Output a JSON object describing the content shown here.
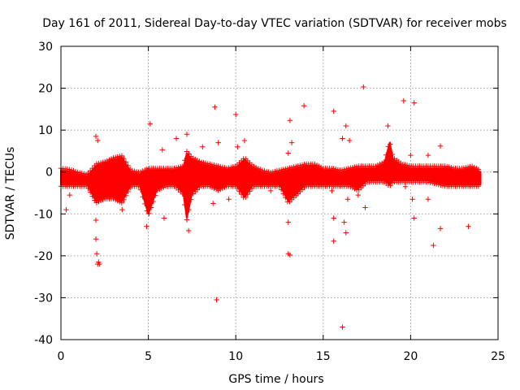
{
  "chart_data": {
    "type": "scatter",
    "title": "Day 161 of 2011, Sidereal Day-to-day VTEC variation (SDTVAR) for receiver mobs",
    "xlabel": "GPS time / hours",
    "ylabel": "SDTVAR / TECUs",
    "xlim": [
      0,
      25
    ],
    "ylim": [
      -40,
      30
    ],
    "xticks": [
      0,
      5,
      10,
      15,
      20,
      25
    ],
    "yticks": [
      -40,
      -30,
      -20,
      -10,
      0,
      10,
      20,
      30
    ],
    "xtick_labels": [
      "0",
      "5",
      "10",
      "15",
      "20",
      "25"
    ],
    "ytick_labels": [
      "-40",
      "-30",
      "-20",
      "-10",
      "0",
      "10",
      "20",
      "30"
    ],
    "grid": true,
    "marker": "+",
    "color": "#ff0000",
    "band": {
      "x_range": [
        0,
        24
      ],
      "upper_envelope": [
        [
          0,
          0.5
        ],
        [
          0.5,
          0.2
        ],
        [
          1,
          -0.5
        ],
        [
          1.5,
          -1
        ],
        [
          2,
          1.5
        ],
        [
          2.5,
          2
        ],
        [
          3,
          3
        ],
        [
          3.5,
          3.5
        ],
        [
          4,
          0
        ],
        [
          4.5,
          -0.5
        ],
        [
          5,
          0.5
        ],
        [
          5.5,
          0.5
        ],
        [
          6,
          0.5
        ],
        [
          6.5,
          0.5
        ],
        [
          7,
          1
        ],
        [
          7.2,
          4.5
        ],
        [
          7.5,
          3
        ],
        [
          8,
          2
        ],
        [
          8.5,
          1.5
        ],
        [
          9,
          1
        ],
        [
          9.5,
          0.5
        ],
        [
          10,
          1
        ],
        [
          10.5,
          3
        ],
        [
          11,
          1
        ],
        [
          11.5,
          0
        ],
        [
          12,
          -0.5
        ],
        [
          12.5,
          0
        ],
        [
          13,
          0.5
        ],
        [
          13.5,
          1
        ],
        [
          14,
          1.5
        ],
        [
          14.5,
          1.5
        ],
        [
          15,
          0.5
        ],
        [
          15.5,
          0.5
        ],
        [
          16,
          0
        ],
        [
          16.5,
          0.5
        ],
        [
          17,
          1
        ],
        [
          17.5,
          1
        ],
        [
          18,
          1
        ],
        [
          18.5,
          2
        ],
        [
          18.8,
          7
        ],
        [
          19,
          3
        ],
        [
          19.5,
          1.5
        ],
        [
          20,
          1
        ],
        [
          21,
          1
        ],
        [
          22,
          1
        ],
        [
          22.5,
          0.5
        ],
        [
          23,
          0.5
        ],
        [
          23.5,
          1
        ],
        [
          24,
          0
        ]
      ],
      "lower_envelope": [
        [
          0,
          -3
        ],
        [
          0.5,
          -3
        ],
        [
          1,
          -3
        ],
        [
          1.5,
          -3
        ],
        [
          2,
          -7
        ],
        [
          2.5,
          -6
        ],
        [
          3,
          -6
        ],
        [
          3.5,
          -7
        ],
        [
          4,
          -3
        ],
        [
          4.5,
          -3
        ],
        [
          5,
          -10
        ],
        [
          5.5,
          -4
        ],
        [
          6,
          -3
        ],
        [
          6.5,
          -3
        ],
        [
          7,
          -5
        ],
        [
          7.2,
          -11
        ],
        [
          7.5,
          -5
        ],
        [
          8,
          -3
        ],
        [
          8.5,
          -3
        ],
        [
          9,
          -4
        ],
        [
          9.5,
          -3
        ],
        [
          10,
          -3
        ],
        [
          10.5,
          -6
        ],
        [
          11,
          -3
        ],
        [
          11.5,
          -3
        ],
        [
          12,
          -3
        ],
        [
          12.5,
          -3
        ],
        [
          13,
          -7
        ],
        [
          13.5,
          -5
        ],
        [
          14,
          -3
        ],
        [
          14.5,
          -3
        ],
        [
          15,
          -3
        ],
        [
          15.5,
          -3
        ],
        [
          16,
          -3
        ],
        [
          16.5,
          -3
        ],
        [
          17,
          -4
        ],
        [
          17.5,
          -2
        ],
        [
          18,
          -2
        ],
        [
          18.5,
          -2
        ],
        [
          18.8,
          -3
        ],
        [
          19,
          -2
        ],
        [
          19.5,
          -2
        ],
        [
          20,
          -2
        ],
        [
          21,
          -2
        ],
        [
          22,
          -3
        ],
        [
          22.5,
          -3
        ],
        [
          23,
          -3
        ],
        [
          23.5,
          -3
        ],
        [
          24,
          -3
        ]
      ]
    },
    "outliers": [
      {
        "x": 0.3,
        "y": -9
      },
      {
        "x": 0.5,
        "y": -5.5
      },
      {
        "x": 2.0,
        "y": 8.5
      },
      {
        "x": 2.1,
        "y": 7.5
      },
      {
        "x": 2.0,
        "y": -16
      },
      {
        "x": 2.05,
        "y": -19.5
      },
      {
        "x": 2.1,
        "y": -22
      },
      {
        "x": 2.2,
        "y": -22
      },
      {
        "x": 2.15,
        "y": -21.5
      },
      {
        "x": 2.0,
        "y": -11.5
      },
      {
        "x": 3.5,
        "y": -9
      },
      {
        "x": 4.9,
        "y": -13
      },
      {
        "x": 5.1,
        "y": 11.5
      },
      {
        "x": 5.8,
        "y": 5.3
      },
      {
        "x": 5.9,
        "y": -11
      },
      {
        "x": 6.6,
        "y": 8
      },
      {
        "x": 7.2,
        "y": 9
      },
      {
        "x": 7.3,
        "y": -14
      },
      {
        "x": 8.1,
        "y": 6
      },
      {
        "x": 8.8,
        "y": 15.5
      },
      {
        "x": 8.9,
        "y": -30.5
      },
      {
        "x": 8.7,
        "y": -7.5
      },
      {
        "x": 9.0,
        "y": 7
      },
      {
        "x": 9.6,
        "y": -6.5
      },
      {
        "x": 10.0,
        "y": 13.7
      },
      {
        "x": 10.1,
        "y": 6
      },
      {
        "x": 10.5,
        "y": 7.5
      },
      {
        "x": 12.0,
        "y": -4.5
      },
      {
        "x": 13.0,
        "y": -19.5
      },
      {
        "x": 13.1,
        "y": -19.8
      },
      {
        "x": 13.1,
        "y": 12.3
      },
      {
        "x": 13.2,
        "y": 7
      },
      {
        "x": 13.0,
        "y": -12
      },
      {
        "x": 13.0,
        "y": 4.5
      },
      {
        "x": 13.9,
        "y": 15.8
      },
      {
        "x": 15.6,
        "y": 14.5
      },
      {
        "x": 15.6,
        "y": -16.5
      },
      {
        "x": 15.6,
        "y": -11
      },
      {
        "x": 15.5,
        "y": -4.5
      },
      {
        "x": 16.1,
        "y": 8
      },
      {
        "x": 16.3,
        "y": 11
      },
      {
        "x": 16.1,
        "y": -37
      },
      {
        "x": 16.3,
        "y": -14.5
      },
      {
        "x": 16.2,
        "y": -12
      },
      {
        "x": 16.4,
        "y": -6.5
      },
      {
        "x": 16.5,
        "y": 7.5
      },
      {
        "x": 17.0,
        "y": -5.5
      },
      {
        "x": 17.3,
        "y": 20.3
      },
      {
        "x": 17.4,
        "y": -8.5
      },
      {
        "x": 18.7,
        "y": 11
      },
      {
        "x": 19.6,
        "y": 17
      },
      {
        "x": 19.7,
        "y": -3.5
      },
      {
        "x": 20.0,
        "y": 4
      },
      {
        "x": 20.1,
        "y": -6.5
      },
      {
        "x": 20.2,
        "y": 16.5
      },
      {
        "x": 20.2,
        "y": -11
      },
      {
        "x": 21.0,
        "y": 4
      },
      {
        "x": 21.0,
        "y": -6.5
      },
      {
        "x": 21.3,
        "y": -17.5
      },
      {
        "x": 21.7,
        "y": -13.5
      },
      {
        "x": 21.7,
        "y": 6.2
      },
      {
        "x": 23.3,
        "y": -13
      },
      {
        "x": 23.5,
        "y": -2.5
      }
    ]
  }
}
